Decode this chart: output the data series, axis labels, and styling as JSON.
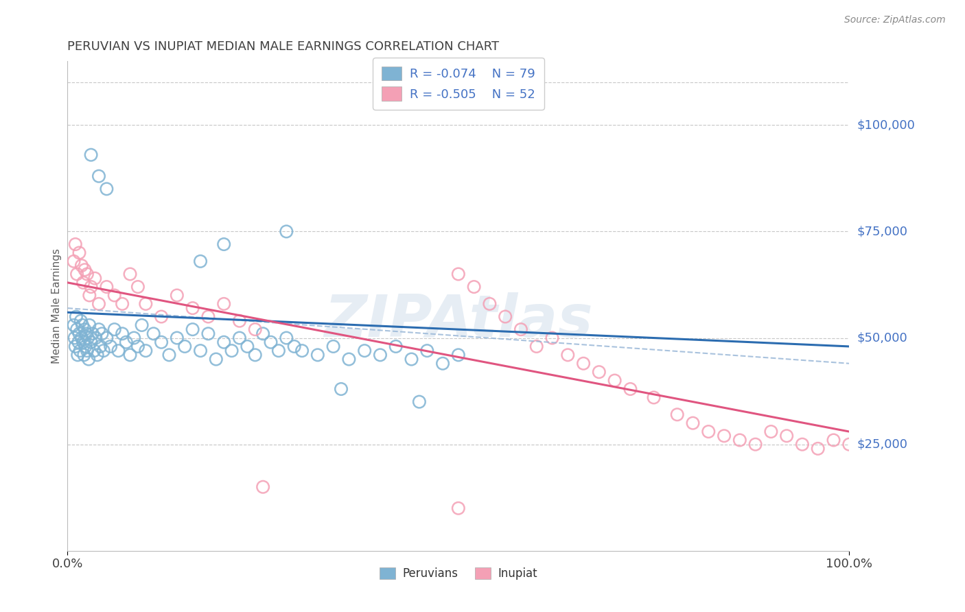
{
  "title": "PERUVIAN VS INUPIAT MEDIAN MALE EARNINGS CORRELATION CHART",
  "source_text": "Source: ZipAtlas.com",
  "ylabel": "Median Male Earnings",
  "xlim": [
    0,
    1.0
  ],
  "ylim": [
    0,
    115000
  ],
  "ytick_values": [
    25000,
    50000,
    75000,
    100000
  ],
  "ytick_labels": [
    "$25,000",
    "$50,000",
    "$75,000",
    "$100,000"
  ],
  "peru_dot_color": "#7fb3d3",
  "inup_dot_color": "#f4a0b5",
  "peru_line_color": "#2b6cb0",
  "inup_line_color": "#e05580",
  "dash_line_color": "#9ab8d8",
  "legend_R_peru": "R = -0.074",
  "legend_N_peru": "N = 79",
  "legend_R_inup": "R = -0.505",
  "legend_N_inup": "N = 52",
  "watermark": "ZIPAtlas",
  "bg_color": "#ffffff",
  "grid_color": "#c8c8c8",
  "title_color": "#404040",
  "tick_color": "#4472C4",
  "label_color": "#606060",
  "peru_x": [
    0.008,
    0.009,
    0.01,
    0.011,
    0.012,
    0.013,
    0.014,
    0.015,
    0.016,
    0.017,
    0.018,
    0.019,
    0.02,
    0.021,
    0.022,
    0.023,
    0.024,
    0.025,
    0.026,
    0.027,
    0.028,
    0.03,
    0.032,
    0.034,
    0.036,
    0.038,
    0.04,
    0.042,
    0.044,
    0.046,
    0.05,
    0.055,
    0.06,
    0.065,
    0.07,
    0.075,
    0.08,
    0.085,
    0.09,
    0.095,
    0.1,
    0.11,
    0.12,
    0.13,
    0.14,
    0.15,
    0.16,
    0.17,
    0.18,
    0.19,
    0.2,
    0.21,
    0.22,
    0.23,
    0.24,
    0.25,
    0.26,
    0.27,
    0.28,
    0.29,
    0.3,
    0.32,
    0.34,
    0.36,
    0.38,
    0.4,
    0.42,
    0.44,
    0.46,
    0.48,
    0.5,
    0.04,
    0.05,
    0.03,
    0.28,
    0.17,
    0.2,
    0.35,
    0.45
  ],
  "peru_y": [
    53000,
    50000,
    48000,
    55000,
    52000,
    46000,
    49000,
    51000,
    47000,
    54000,
    50000,
    53000,
    49000,
    46000,
    52000,
    48000,
    51000,
    47000,
    50000,
    45000,
    53000,
    49000,
    51000,
    47000,
    50000,
    46000,
    52000,
    48000,
    51000,
    47000,
    50000,
    48000,
    52000,
    47000,
    51000,
    49000,
    46000,
    50000,
    48000,
    53000,
    47000,
    51000,
    49000,
    46000,
    50000,
    48000,
    52000,
    47000,
    51000,
    45000,
    49000,
    47000,
    50000,
    48000,
    46000,
    51000,
    49000,
    47000,
    50000,
    48000,
    47000,
    46000,
    48000,
    45000,
    47000,
    46000,
    48000,
    45000,
    47000,
    44000,
    46000,
    88000,
    85000,
    93000,
    75000,
    68000,
    72000,
    38000,
    35000
  ],
  "inup_x": [
    0.008,
    0.01,
    0.012,
    0.015,
    0.018,
    0.02,
    0.022,
    0.025,
    0.028,
    0.03,
    0.035,
    0.04,
    0.05,
    0.06,
    0.07,
    0.08,
    0.09,
    0.1,
    0.12,
    0.14,
    0.16,
    0.18,
    0.2,
    0.22,
    0.24,
    0.5,
    0.52,
    0.54,
    0.56,
    0.58,
    0.6,
    0.62,
    0.64,
    0.66,
    0.68,
    0.7,
    0.72,
    0.75,
    0.78,
    0.8,
    0.82,
    0.84,
    0.86,
    0.88,
    0.9,
    0.92,
    0.94,
    0.96,
    0.98,
    1.0,
    0.5,
    0.25
  ],
  "inup_y": [
    68000,
    72000,
    65000,
    70000,
    67000,
    63000,
    66000,
    65000,
    60000,
    62000,
    64000,
    58000,
    62000,
    60000,
    58000,
    65000,
    62000,
    58000,
    55000,
    60000,
    57000,
    55000,
    58000,
    54000,
    52000,
    65000,
    62000,
    58000,
    55000,
    52000,
    48000,
    50000,
    46000,
    44000,
    42000,
    40000,
    38000,
    36000,
    32000,
    30000,
    28000,
    27000,
    26000,
    25000,
    28000,
    27000,
    25000,
    24000,
    26000,
    25000,
    10000,
    15000
  ]
}
